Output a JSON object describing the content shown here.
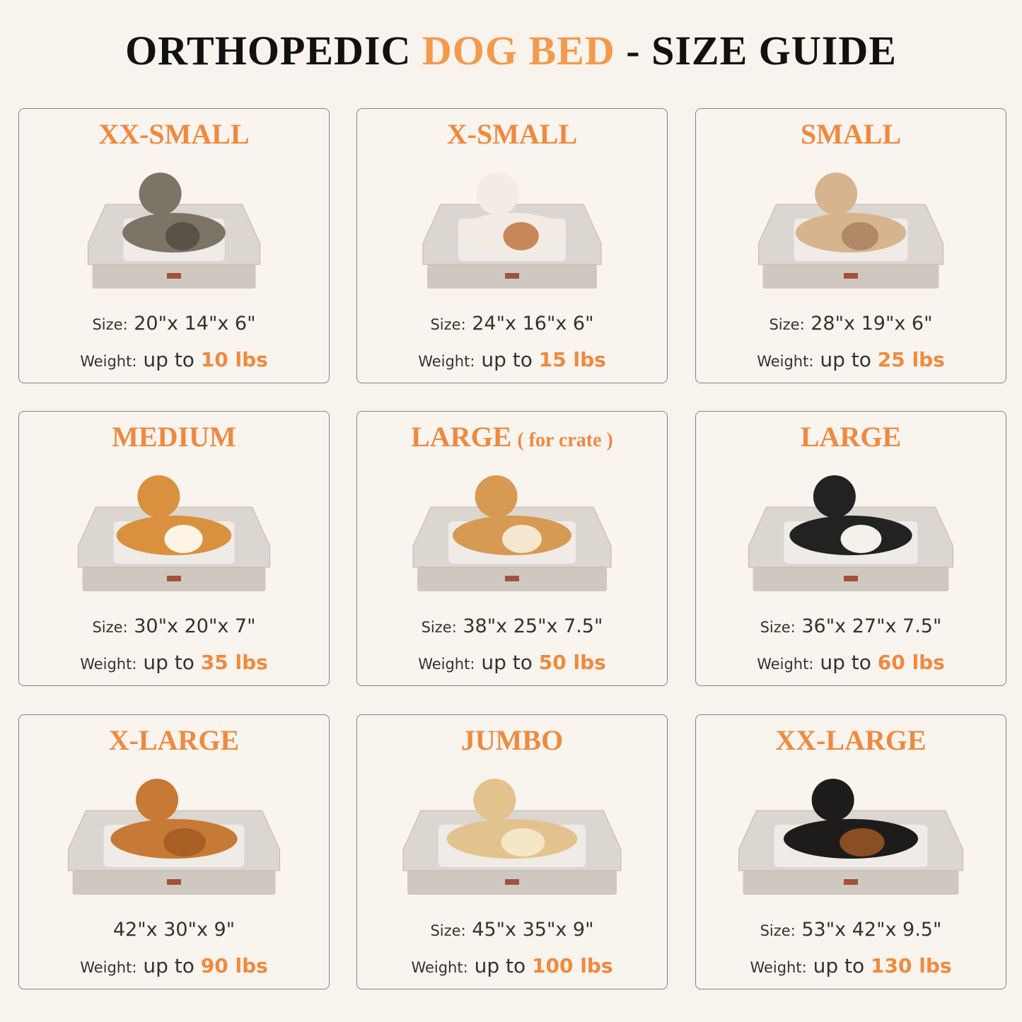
{
  "title": {
    "part1": "ORTHOPEDIC",
    "accent": "DOG BED",
    "part2": "- SIZE GUIDE"
  },
  "colors": {
    "accent": "#ee8a3f",
    "background": "#f9f3ee",
    "bed": "#d8d2cc"
  },
  "cards": [
    {
      "name": "XX-SMALL",
      "sub": "",
      "pet": "tabby-cat",
      "size_label": "Size:",
      "size": "20\"x 14\"x 6\"",
      "weight_label": "Weight:",
      "weight_prefix": "up to",
      "weight": "10 lbs"
    },
    {
      "name": "X-SMALL",
      "sub": "",
      "pet": "small-white-dog",
      "size_label": "Size:",
      "size": "24\"x 16\"x 6\"",
      "weight_label": "Weight:",
      "weight_prefix": "up to",
      "weight": "15 lbs"
    },
    {
      "name": "SMALL",
      "sub": "",
      "pet": "french-bulldog",
      "size_label": "Size:",
      "size": "28\"x 19\"x 6\"",
      "weight_label": "Weight:",
      "weight_prefix": "up to",
      "weight": "25 lbs"
    },
    {
      "name": "MEDIUM",
      "sub": "",
      "pet": "corgi",
      "size_label": "Size:",
      "size": "30\"x 20\"x 7\"",
      "weight_label": "Weight:",
      "weight_prefix": "up to",
      "weight": "35 lbs"
    },
    {
      "name": "LARGE",
      "sub": "( for crate )",
      "pet": "shiba-inu",
      "size_label": "Size:",
      "size": "38\"x 25\"x 7.5\"",
      "weight_label": "Weight:",
      "weight_prefix": "up to",
      "weight": "50 lbs"
    },
    {
      "name": "LARGE",
      "sub": "",
      "pet": "australian-shepherd",
      "size_label": "Size:",
      "size": "36\"x 27\"x 7.5\"",
      "weight_label": "Weight:",
      "weight_prefix": "up to",
      "weight": "60 lbs"
    },
    {
      "name": "X-LARGE",
      "sub": "",
      "pet": "golden-retriever",
      "size_label": "",
      "size": "42\"x 30\"x 9\"",
      "weight_label": "Weight:",
      "weight_prefix": "up to",
      "weight": "90 lbs"
    },
    {
      "name": "JUMBO",
      "sub": "",
      "pet": "labrador",
      "size_label": "Size:",
      "size": "45\"x 35\"x 9\"",
      "weight_label": "Weight:",
      "weight_prefix": "up to",
      "weight": "100 lbs"
    },
    {
      "name": "XX-LARGE",
      "sub": "",
      "pet": "rottweiler-and-chihuahua",
      "size_label": "Size:",
      "size": "53\"x 42\"x 9.5\"",
      "weight_label": "Weight:",
      "weight_prefix": "up to",
      "weight": "130 lbs"
    }
  ]
}
